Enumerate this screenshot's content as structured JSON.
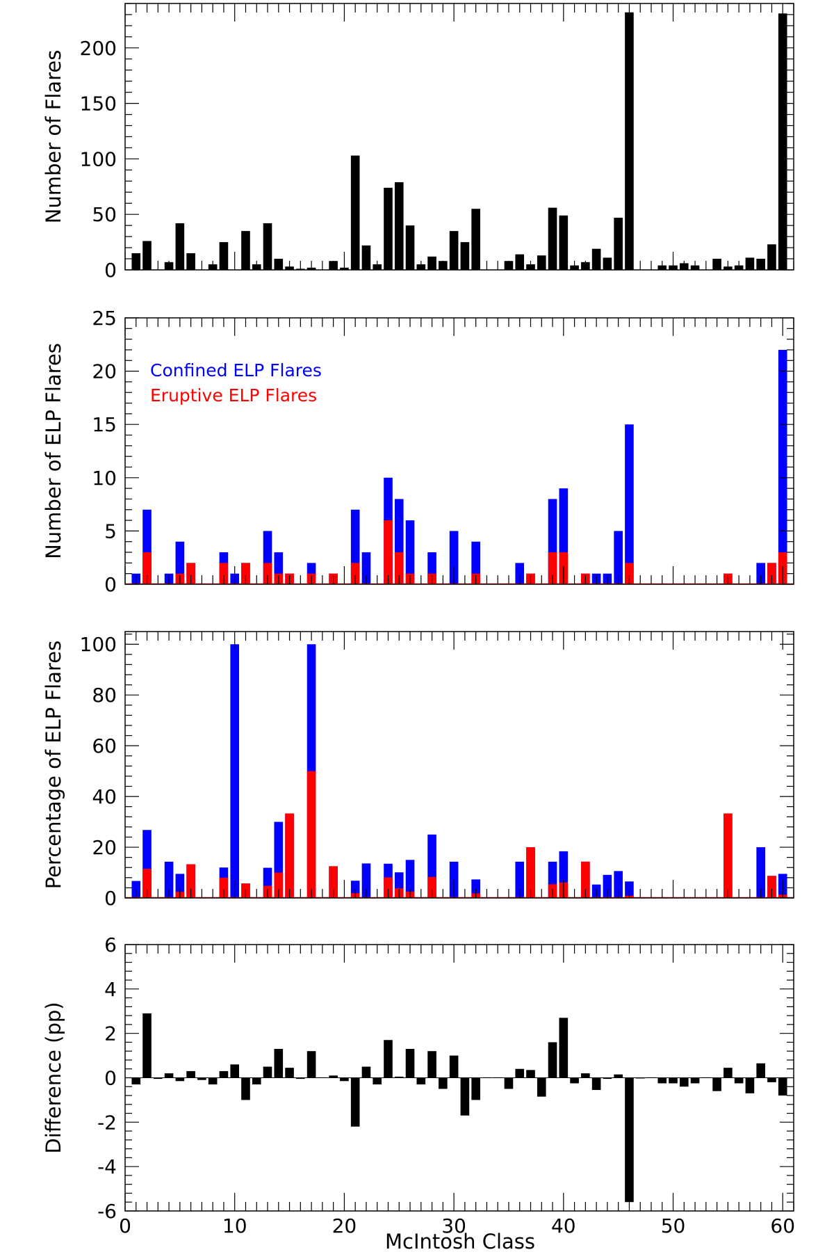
{
  "figure": {
    "xlabel": "McIntosh Class",
    "x_ticks": [
      "0",
      "10",
      "20",
      "30",
      "40",
      "50",
      "60"
    ]
  },
  "colors": {
    "black": "#000000",
    "confined": "#0000ff",
    "eruptive": "#ff0000"
  },
  "chart_data": [
    {
      "id": "panel1",
      "type": "bar",
      "ylabel": "Number of Flares",
      "ylim": [
        0,
        240
      ],
      "xlim": [
        0,
        61
      ],
      "y_ticks": [
        0,
        50,
        100,
        150,
        200
      ],
      "y_tick_labels": [
        "0",
        "50",
        "100",
        "150",
        "200"
      ],
      "x": [
        1,
        2,
        3,
        4,
        5,
        6,
        7,
        8,
        9,
        10,
        11,
        12,
        13,
        14,
        15,
        16,
        17,
        18,
        19,
        20,
        21,
        22,
        23,
        24,
        25,
        26,
        27,
        28,
        29,
        30,
        31,
        32,
        33,
        34,
        35,
        36,
        37,
        38,
        39,
        40,
        41,
        42,
        43,
        44,
        45,
        46,
        47,
        48,
        49,
        50,
        51,
        52,
        53,
        54,
        55,
        56,
        57,
        58,
        59,
        60
      ],
      "values": [
        15,
        26,
        0,
        7,
        42,
        15,
        0,
        5,
        25,
        0,
        35,
        5,
        42,
        10,
        3,
        1,
        2,
        0,
        8,
        2,
        103,
        22,
        5,
        74,
        79,
        40,
        5,
        12,
        8,
        35,
        25,
        55,
        0,
        0,
        8,
        14,
        5,
        13,
        56,
        49,
        4,
        7,
        19,
        11,
        47,
        232,
        0,
        0,
        4,
        4,
        6,
        4,
        0,
        10,
        3,
        4,
        11,
        10,
        23,
        231
      ]
    },
    {
      "id": "panel2",
      "type": "bar",
      "ylabel": "Number of ELP Flares",
      "ylim": [
        0,
        25
      ],
      "xlim": [
        0,
        61
      ],
      "y_ticks": [
        0,
        5,
        10,
        15,
        20,
        25
      ],
      "y_tick_labels": [
        "0",
        "5",
        "10",
        "15",
        "20",
        "25"
      ],
      "legend": {
        "confined": "Confined ELP Flares",
        "eruptive": "Eruptive ELP Flares",
        "position": "top-left"
      },
      "x": [
        1,
        2,
        3,
        4,
        5,
        6,
        7,
        8,
        9,
        10,
        11,
        12,
        13,
        14,
        15,
        16,
        17,
        18,
        19,
        20,
        21,
        22,
        23,
        24,
        25,
        26,
        27,
        28,
        29,
        30,
        31,
        32,
        33,
        34,
        35,
        36,
        37,
        38,
        39,
        40,
        41,
        42,
        43,
        44,
        45,
        46,
        47,
        48,
        49,
        50,
        51,
        52,
        53,
        54,
        55,
        56,
        57,
        58,
        59,
        60
      ],
      "series": [
        {
          "name": "Confined ELP Flares",
          "values": [
            1,
            4,
            0,
            1,
            3,
            0,
            0,
            0,
            1,
            1,
            0,
            0,
            3,
            2,
            0,
            0,
            1,
            0,
            0,
            0,
            5,
            3,
            0,
            4,
            5,
            5,
            0,
            2,
            0,
            5,
            0,
            3,
            0,
            0,
            0,
            2,
            0,
            0,
            5,
            6,
            0,
            0,
            1,
            1,
            5,
            13,
            0,
            0,
            0,
            0,
            0,
            0,
            0,
            0,
            0,
            0,
            0,
            2,
            0,
            19
          ]
        },
        {
          "name": "Eruptive ELP Flares",
          "values": [
            0,
            3,
            0,
            0,
            1,
            2,
            0,
            0,
            2,
            0,
            2,
            0,
            2,
            1,
            1,
            0,
            1,
            0,
            1,
            0,
            2,
            0,
            0,
            6,
            3,
            1,
            0,
            1,
            0,
            0,
            0,
            1,
            0,
            0,
            0,
            0,
            1,
            0,
            3,
            3,
            0,
            1,
            0,
            0,
            0,
            2,
            0,
            0,
            0,
            0,
            0,
            0,
            0,
            0,
            1,
            0,
            0,
            0,
            2,
            3
          ]
        }
      ]
    },
    {
      "id": "panel3",
      "type": "bar",
      "ylabel": "Percentage of ELP Flares",
      "ylim": [
        0,
        105
      ],
      "xlim": [
        0,
        61
      ],
      "y_ticks": [
        0,
        20,
        40,
        60,
        80,
        100
      ],
      "y_tick_labels": [
        "0",
        "20",
        "40",
        "60",
        "80",
        "100"
      ],
      "x": [
        1,
        2,
        3,
        4,
        5,
        6,
        7,
        8,
        9,
        10,
        11,
        12,
        13,
        14,
        15,
        16,
        17,
        18,
        19,
        20,
        21,
        22,
        23,
        24,
        25,
        26,
        27,
        28,
        29,
        30,
        31,
        32,
        33,
        34,
        35,
        36,
        37,
        38,
        39,
        40,
        41,
        42,
        43,
        44,
        45,
        46,
        47,
        48,
        49,
        50,
        51,
        52,
        53,
        54,
        55,
        56,
        57,
        58,
        59,
        60
      ],
      "series": [
        {
          "name": "Confined ELP Flares",
          "values": [
            6.7,
            15.3,
            0,
            14.3,
            7.1,
            0,
            0,
            0,
            4,
            100,
            0,
            0,
            7.1,
            20,
            0,
            0,
            50,
            0,
            0,
            0,
            4.9,
            13.6,
            0,
            5.4,
            6.3,
            12.5,
            0,
            16.7,
            0,
            14.3,
            0,
            5.5,
            0,
            0,
            0,
            14.3,
            0,
            0,
            8.9,
            12.3,
            0,
            0,
            5.3,
            9.1,
            10.6,
            5.6,
            0,
            0,
            0,
            0,
            0,
            0,
            0,
            0,
            0,
            0,
            0,
            20,
            0,
            8.2
          ]
        },
        {
          "name": "Eruptive ELP Flares",
          "values": [
            0,
            11.5,
            0,
            0,
            2.4,
            13.3,
            0,
            0,
            8,
            0,
            5.7,
            0,
            4.8,
            10,
            33.3,
            0,
            50,
            0,
            12.5,
            0,
            1.9,
            0,
            0,
            8.1,
            3.8,
            2.5,
            0,
            8.3,
            0,
            0,
            0,
            1.8,
            0,
            0,
            0,
            0,
            20,
            0,
            5.4,
            6.1,
            0,
            14.3,
            0,
            0,
            0,
            0.9,
            0,
            0,
            0,
            0,
            0,
            0,
            0,
            0,
            33.3,
            0,
            0,
            0,
            8.7,
            1.3
          ]
        }
      ]
    },
    {
      "id": "panel4",
      "type": "bar",
      "ylabel": "Difference (pp)",
      "ylim": [
        -6,
        6
      ],
      "xlim": [
        0,
        61
      ],
      "y_ticks": [
        -6,
        -4,
        -2,
        0,
        2,
        4,
        6
      ],
      "y_tick_labels": [
        "-6",
        "-4",
        "-2",
        "0",
        "2",
        "4",
        "6"
      ],
      "x": [
        1,
        2,
        3,
        4,
        5,
        6,
        7,
        8,
        9,
        10,
        11,
        12,
        13,
        14,
        15,
        16,
        17,
        18,
        19,
        20,
        21,
        22,
        23,
        24,
        25,
        26,
        27,
        28,
        29,
        30,
        31,
        32,
        33,
        34,
        35,
        36,
        37,
        38,
        39,
        40,
        41,
        42,
        43,
        44,
        45,
        46,
        47,
        48,
        49,
        50,
        51,
        52,
        53,
        54,
        55,
        56,
        57,
        58,
        59,
        60
      ],
      "values": [
        -0.3,
        2.9,
        -0.05,
        0.2,
        -0.15,
        0.3,
        -0.1,
        -0.3,
        0.3,
        0.6,
        -1.0,
        -0.3,
        0.5,
        1.3,
        0.45,
        -0.05,
        1.2,
        0.02,
        0.1,
        -0.15,
        -2.2,
        0.5,
        -0.3,
        1.7,
        0.05,
        1.3,
        -0.3,
        1.2,
        -0.5,
        1.0,
        -1.7,
        -1.0,
        0.02,
        0.02,
        -0.5,
        0.4,
        0.35,
        -0.85,
        1.6,
        2.7,
        -0.25,
        0.2,
        -0.55,
        -0.05,
        0.15,
        -5.6,
        -0.02,
        0.02,
        -0.25,
        -0.25,
        -0.4,
        -0.25,
        0.02,
        -0.6,
        0.45,
        -0.25,
        -0.7,
        0.65,
        -0.2,
        -0.8
      ]
    }
  ]
}
